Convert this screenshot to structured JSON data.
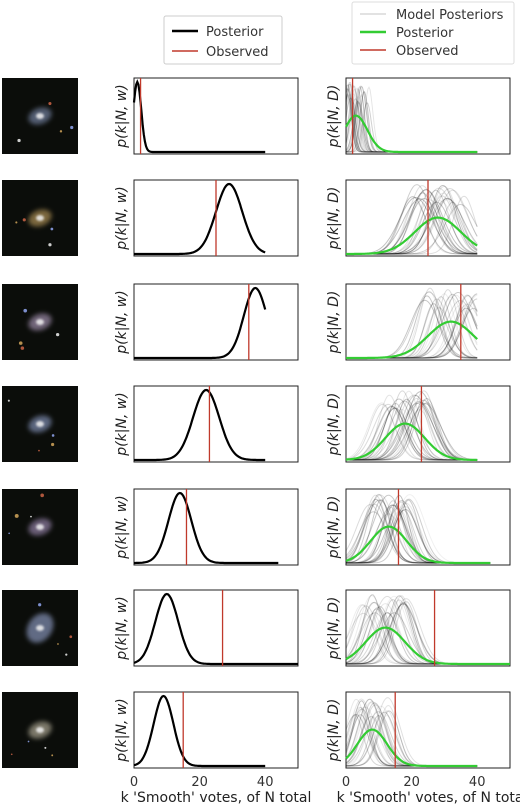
{
  "legend_left": {
    "entries": [
      {
        "label": "Posterior",
        "color": "#000000"
      },
      {
        "label": "Observed",
        "color": "#c0392b"
      }
    ]
  },
  "legend_right": {
    "entries": [
      {
        "label": "Model Posteriors",
        "color": "#d9d9d9"
      },
      {
        "label": "Posterior",
        "color": "#33cc33"
      },
      {
        "label": "Observed",
        "color": "#c0392b"
      }
    ]
  },
  "left_ylabel": "p(k|N, w)",
  "right_ylabel": "p(k|N, D)",
  "xlabel": "k 'Smooth' votes, of N total",
  "xticks": [
    "0",
    "20",
    "40"
  ],
  "colors": {
    "posterior_left": "#000000",
    "posterior_right": "#33cc33",
    "observed": "#c0392b",
    "model_posteriors": "#000000",
    "frame": "#222222"
  },
  "chart_data": {
    "type": "line",
    "xlabel": "k 'Smooth' votes, of N total",
    "xlim": [
      0,
      50
    ],
    "xticks": [
      0,
      20,
      40
    ],
    "galaxies": [
      {
        "image": "galaxy-cutout-1",
        "posterior_peak": 1,
        "posterior_width": 1.2,
        "observed": 2,
        "N": 40,
        "dist_peak": 3,
        "dist_width": 3.5
      },
      {
        "image": "galaxy-cutout-2",
        "posterior_peak": 29,
        "posterior_width": 4.0,
        "observed": 25,
        "N": 40,
        "dist_peak": 28,
        "dist_width": 7
      },
      {
        "image": "galaxy-cutout-3",
        "posterior_peak": 37,
        "posterior_width": 3.5,
        "observed": 35,
        "N": 40,
        "dist_peak": 32,
        "dist_width": 7
      },
      {
        "image": "galaxy-cutout-4",
        "posterior_peak": 22,
        "posterior_width": 4.0,
        "observed": 23,
        "N": 40,
        "dist_peak": 18,
        "dist_width": 6
      },
      {
        "image": "galaxy-cutout-5",
        "posterior_peak": 14,
        "posterior_width": 3.5,
        "observed": 16,
        "N": 44,
        "dist_peak": 13,
        "dist_width": 5.5
      },
      {
        "image": "galaxy-cutout-6",
        "posterior_peak": 10,
        "posterior_width": 3.5,
        "observed": 27,
        "N": 50,
        "dist_peak": 12,
        "dist_width": 6
      },
      {
        "image": "galaxy-cutout-7",
        "posterior_peak": 9,
        "posterior_width": 3.0,
        "observed": 15,
        "N": 40,
        "dist_peak": 8,
        "dist_width": 4.5
      }
    ]
  }
}
